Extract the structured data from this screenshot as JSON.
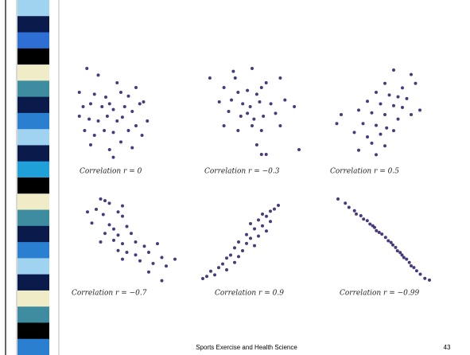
{
  "chart_data": [
    {
      "type": "scatter",
      "title": "Correlation r = 0",
      "color": "#4a3a7c",
      "xlim": [
        0,
        100
      ],
      "ylim": [
        0,
        100
      ],
      "x": [
        15,
        30,
        55,
        80,
        5,
        25,
        40,
        60,
        70,
        90,
        10,
        20,
        35,
        45,
        50,
        65,
        75,
        85,
        5,
        18,
        30,
        42,
        55,
        62,
        80,
        95,
        12,
        25,
        38,
        50,
        70,
        88,
        20,
        45,
        60,
        75,
        50
      ],
      "y": [
        95,
        88,
        80,
        75,
        70,
        68,
        65,
        70,
        66,
        60,
        55,
        58,
        55,
        58,
        52,
        55,
        50,
        58,
        45,
        42,
        40,
        45,
        40,
        44,
        35,
        40,
        30,
        25,
        30,
        28,
        30,
        25,
        15,
        10,
        18,
        12,
        2
      ]
    },
    {
      "type": "scatter",
      "title": "Correlation r = −0.3",
      "color": "#4a3a7c",
      "xlim": [
        0,
        100
      ],
      "ylim": [
        0,
        100
      ],
      "x": [
        5,
        30,
        32,
        50,
        65,
        80,
        20,
        35,
        45,
        55,
        60,
        15,
        28,
        40,
        48,
        58,
        70,
        85,
        95,
        25,
        38,
        45,
        52,
        62,
        75,
        20,
        35,
        50,
        60,
        80,
        55,
        60,
        65,
        100
      ],
      "y": [
        85,
        92,
        85,
        95,
        80,
        85,
        75,
        70,
        72,
        68,
        75,
        60,
        62,
        58,
        55,
        60,
        58,
        62,
        55,
        50,
        45,
        48,
        42,
        45,
        48,
        35,
        30,
        35,
        30,
        35,
        15,
        5,
        5,
        10
      ]
    },
    {
      "type": "scatter",
      "title": "Correlation r = 0.5",
      "color": "#4a3a7c",
      "xlim": [
        0,
        100
      ],
      "ylim": [
        0,
        100
      ],
      "x": [
        70,
        90,
        60,
        80,
        95,
        50,
        65,
        75,
        85,
        40,
        55,
        70,
        80,
        100,
        10,
        30,
        45,
        60,
        75,
        90,
        5,
        35,
        50,
        62,
        70,
        25,
        40,
        55,
        45,
        60,
        30,
        50
      ],
      "y": [
        100,
        95,
        85,
        80,
        85,
        75,
        72,
        70,
        68,
        65,
        62,
        60,
        58,
        55,
        50,
        55,
        52,
        50,
        45,
        50,
        40,
        40,
        38,
        35,
        32,
        30,
        25,
        28,
        18,
        15,
        10,
        5
      ]
    },
    {
      "type": "scatter",
      "title": "Correlation r = −0.7",
      "color": "#4a3a7c",
      "xlim": [
        0,
        100
      ],
      "ylim": [
        0,
        100
      ],
      "x": [
        0,
        15,
        20,
        25,
        40,
        10,
        18,
        35,
        40,
        5,
        25,
        30,
        45,
        20,
        35,
        50,
        15,
        30,
        40,
        55,
        65,
        80,
        35,
        45,
        55,
        70,
        85,
        40,
        60,
        75,
        90,
        100,
        70,
        85
      ],
      "y": [
        85,
        100,
        98,
        95,
        92,
        88,
        82,
        85,
        80,
        72,
        70,
        65,
        68,
        60,
        58,
        60,
        50,
        52,
        48,
        50,
        45,
        48,
        40,
        38,
        35,
        38,
        32,
        30,
        28,
        25,
        22,
        30,
        15,
        5
      ]
    },
    {
      "type": "scatter",
      "title": "Correlation r = 0.9",
      "color": "#4a3a7c",
      "xlim": [
        0,
        100
      ],
      "ylim": [
        0,
        100
      ],
      "x": [
        95,
        90,
        85,
        75,
        80,
        70,
        85,
        60,
        75,
        65,
        80,
        55,
        70,
        60,
        45,
        55,
        65,
        40,
        50,
        35,
        45,
        30,
        40,
        25,
        20,
        30,
        10,
        15,
        5,
        0
      ],
      "y": [
        100,
        95,
        92,
        88,
        85,
        80,
        78,
        75,
        72,
        68,
        65,
        60,
        58,
        55,
        50,
        48,
        45,
        42,
        38,
        32,
        30,
        28,
        22,
        20,
        15,
        12,
        10,
        5,
        3,
        0
      ]
    },
    {
      "type": "scatter",
      "title": "Correlation r = −0.99",
      "color": "#4a3a7c",
      "xlim": [
        0,
        100
      ],
      "ylim": [
        0,
        100
      ],
      "x": [
        0,
        8,
        12,
        18,
        20,
        25,
        28,
        32,
        35,
        38,
        40,
        42,
        45,
        48,
        52,
        55,
        58,
        60,
        63,
        65,
        68,
        70,
        72,
        75,
        78,
        80,
        83,
        86,
        90,
        95,
        100
      ],
      "y": [
        100,
        95,
        90,
        86,
        82,
        80,
        76,
        74,
        70,
        68,
        66,
        62,
        60,
        58,
        54,
        50,
        48,
        45,
        42,
        38,
        36,
        33,
        30,
        28,
        24,
        20,
        18,
        14,
        10,
        5,
        3
      ]
    }
  ],
  "footer": {
    "text": "Sports Exercise and Health Science",
    "page": "43"
  }
}
